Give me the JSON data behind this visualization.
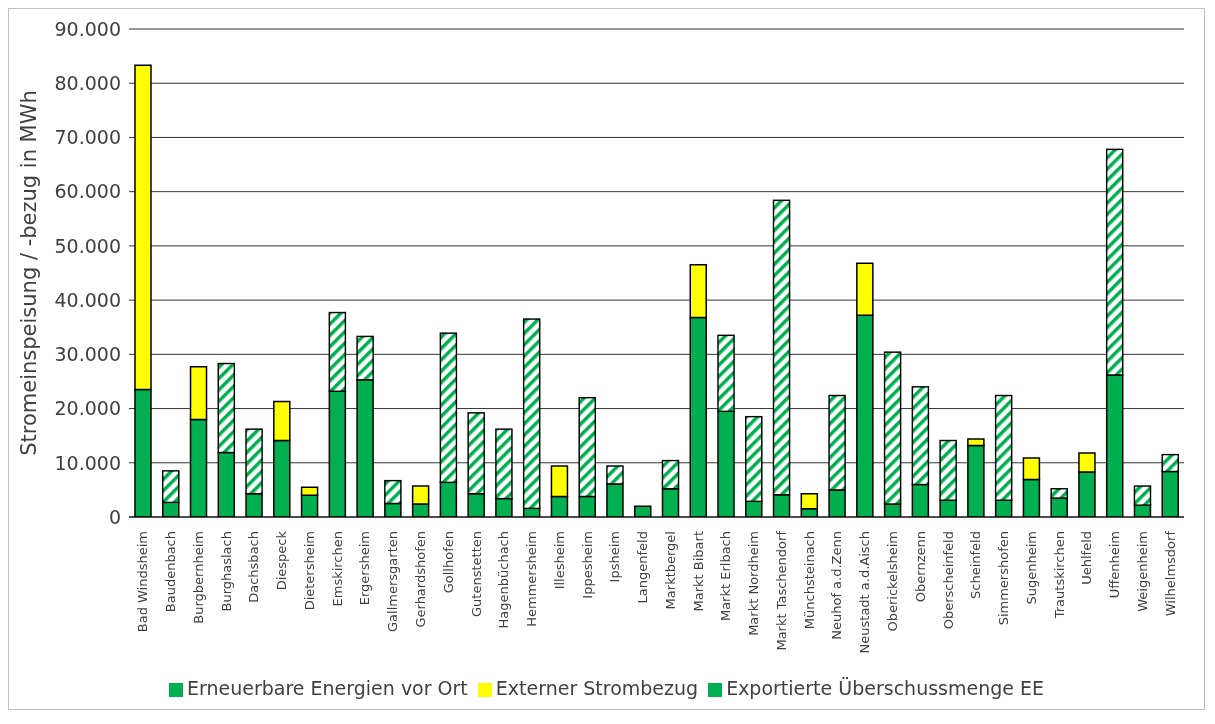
{
  "chart_data": {
    "type": "bar",
    "stacked": true,
    "ylabel": "Stromeinspeisung / -bezug in MWh",
    "categories": [
      "Bad Windsheim",
      "Baudenbach",
      "Burgbernheim",
      "Burghaslach",
      "Dachsbach",
      "Diespeck",
      "Dietersheim",
      "Emskirchen",
      "Ergersheim",
      "Gallmersgarten",
      "Gerhardshofen",
      "Gollhofen",
      "Gutenstetten",
      "Hagenbüchach",
      "Hemmersheim",
      "Illesheim",
      "Ippesheim",
      "Ipsheim",
      "Langenfeld",
      "Marktbergel",
      "Markt Bibart",
      "Markt Erlbach",
      "Markt Nordheim",
      "Markt Taschendorf",
      "Münchsteinach",
      "Neuhof a.d.Zenn",
      "Neustadt a.d.Aisch",
      "Oberickelsheim",
      "Obernzenn",
      "Oberscheinfeld",
      "Scheinfeld",
      "Simmershofen",
      "Sugenheim",
      "Trautskirchen",
      "Uehlfeld",
      "Uffenheim",
      "Weigenheim",
      "Wilhelmsdorf"
    ],
    "series": [
      {
        "name": "Erneuerbare Energien vor Ort",
        "color": "#00b050",
        "values": [
          23500,
          2700,
          18000,
          11900,
          4300,
          14100,
          4000,
          23200,
          25300,
          2500,
          2400,
          6400,
          4300,
          3400,
          1600,
          3800,
          3800,
          6100,
          2000,
          5200,
          36800,
          19500,
          2900,
          4100,
          1500,
          5000,
          37200,
          2400,
          6000,
          3100,
          13200,
          3100,
          6900,
          3500,
          8300,
          26200,
          2200,
          8400
        ]
      },
      {
        "name": "Externer Strombezug",
        "color": "#ffff00",
        "values": [
          59800,
          null,
          9700,
          null,
          null,
          7200,
          1500,
          null,
          null,
          null,
          3300,
          null,
          null,
          null,
          null,
          5600,
          null,
          null,
          null,
          null,
          9700,
          null,
          null,
          null,
          2800,
          null,
          9600,
          null,
          null,
          null,
          1200,
          null,
          4000,
          null,
          3500,
          null,
          null,
          null
        ]
      },
      {
        "name": "Exportierte Überschussmenge EE",
        "color": "#00b050",
        "values": [
          null,
          5800,
          null,
          16400,
          11900,
          null,
          null,
          14500,
          8000,
          4200,
          null,
          27500,
          14900,
          12800,
          34900,
          null,
          18200,
          3300,
          null,
          5200,
          null,
          14000,
          15600,
          54300,
          null,
          17400,
          null,
          28000,
          18000,
          11000,
          null,
          19300,
          null,
          1700,
          null,
          41600,
          3500,
          3100
        ]
      }
    ],
    "ylim": [
      0,
      90000
    ],
    "yticks": [
      0,
      {
        "value": 10000,
        "label": "10.000"
      },
      {
        "value": 20000,
        "label": "20.000"
      },
      {
        "value": 30000,
        "label": "30.000"
      },
      {
        "value": 40000,
        "label": "40.000"
      },
      {
        "value": 50000,
        "label": "50.000"
      },
      {
        "value": 60000,
        "label": "60.000"
      },
      {
        "value": 70000,
        "label": "70.000"
      },
      {
        "value": 80000,
        "label": "80.000"
      },
      {
        "value": 90000,
        "label": "90.000"
      }
    ],
    "grid": "y",
    "legend": "bottom"
  }
}
